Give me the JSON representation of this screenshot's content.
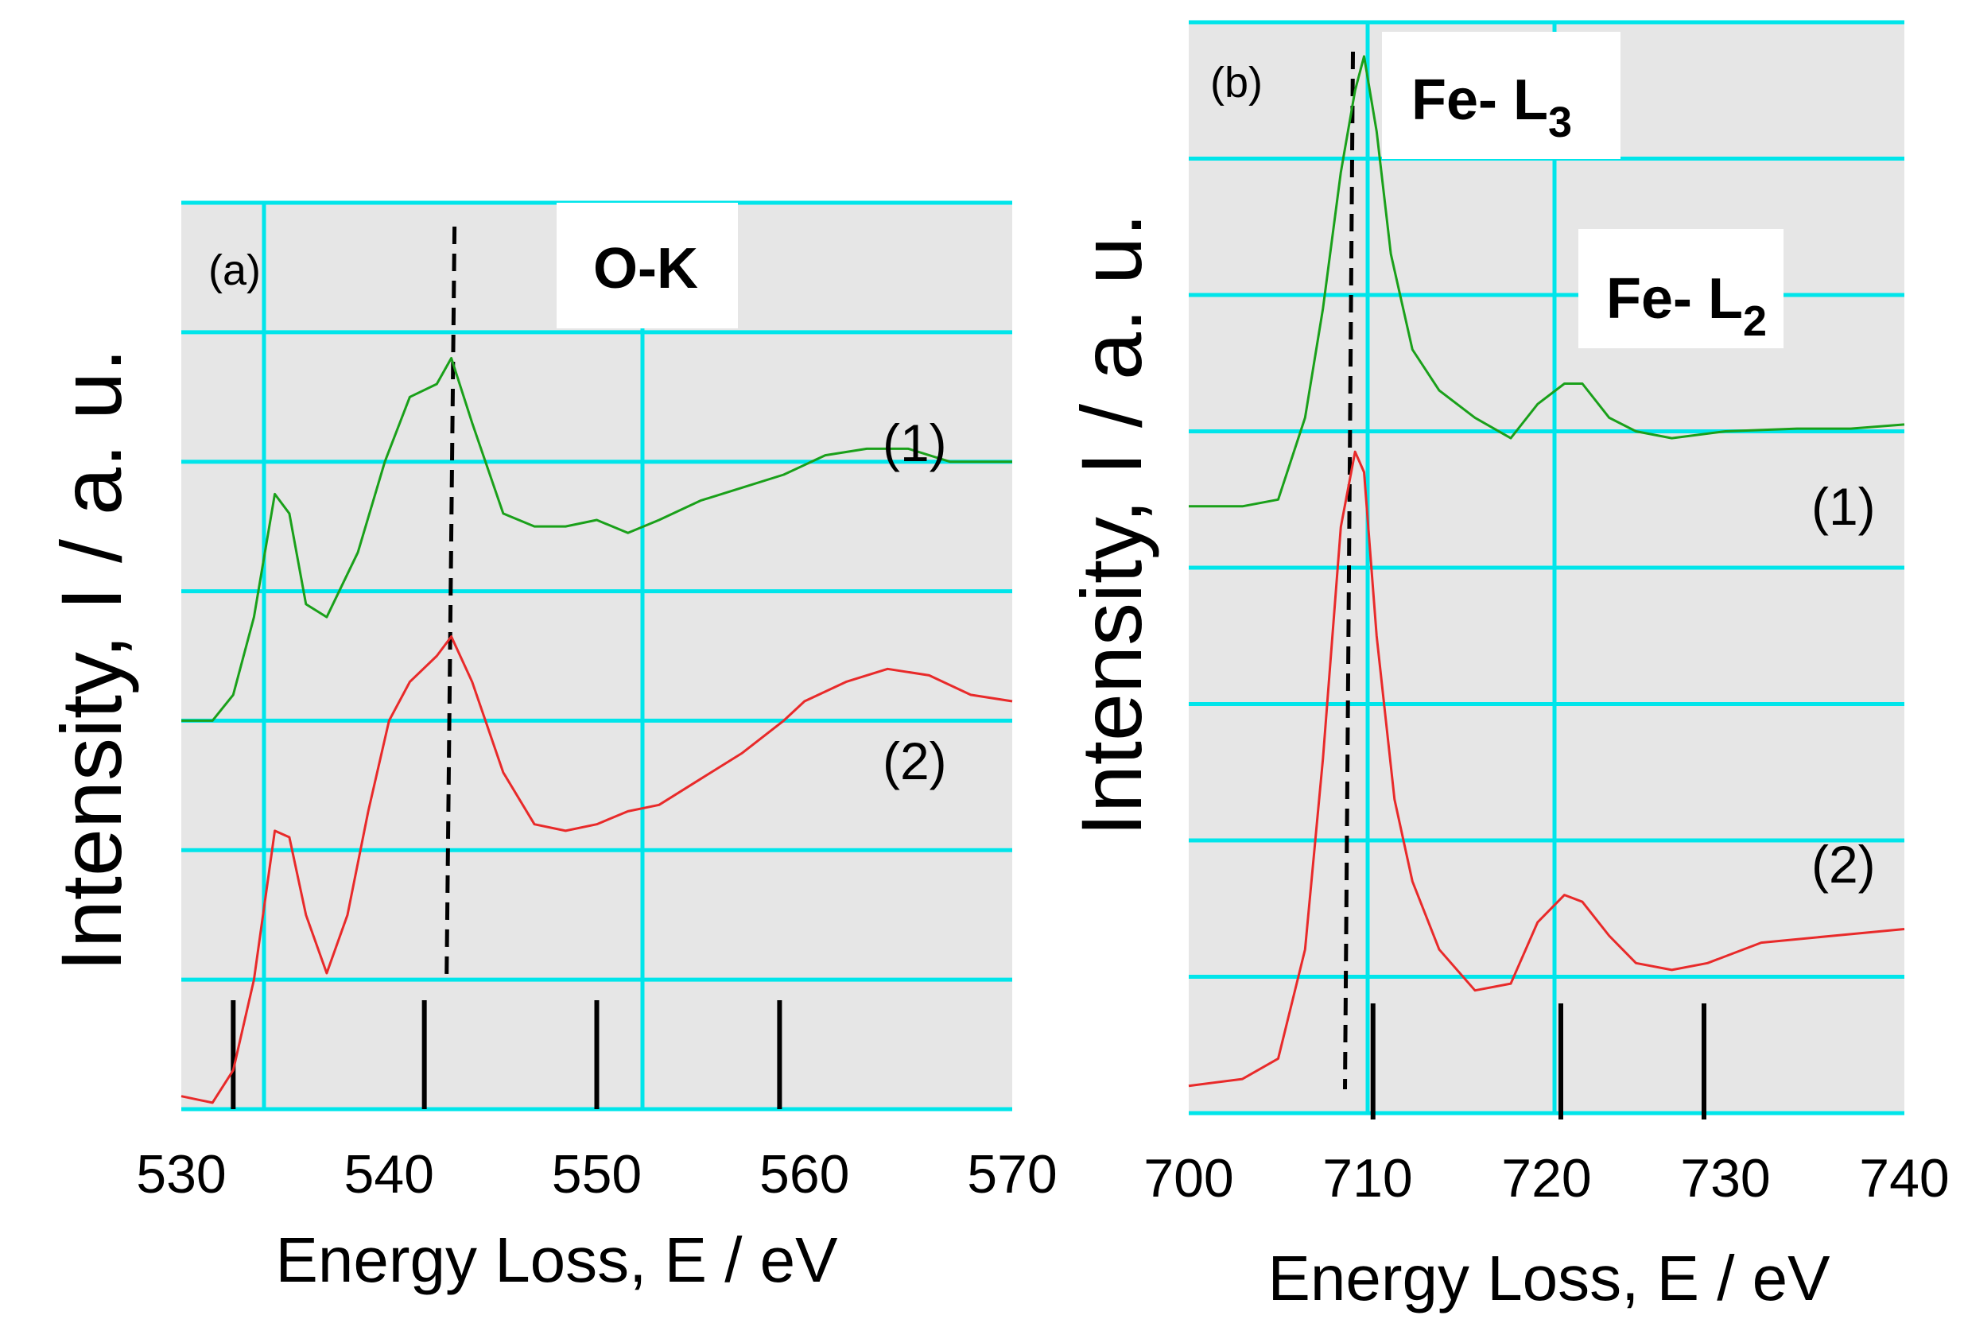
{
  "chart_data": [
    {
      "type": "line",
      "panel": "(a)",
      "edge_label": "O-K",
      "xlabel": "Energy Loss, E / eV",
      "ylabel": "Intensity, I / a. u.",
      "xlim": [
        530,
        570
      ],
      "ylim": [
        0,
        7
      ],
      "x_ticks": [
        "530",
        "540",
        "550",
        "560",
        "570"
      ],
      "grid": true,
      "peak_marker_energy": 543,
      "reference_ticks": [
        532.5,
        541.7,
        550,
        558.8
      ],
      "series": [
        {
          "name": "(1)",
          "color": "#1aa01a",
          "points": [
            [
              530,
              3.0
            ],
            [
              531.5,
              3.0
            ],
            [
              532.5,
              3.2
            ],
            [
              533.5,
              3.8
            ],
            [
              534.5,
              4.75
            ],
            [
              535.2,
              4.6
            ],
            [
              536,
              3.9
            ],
            [
              537,
              3.8
            ],
            [
              538.5,
              4.3
            ],
            [
              539.8,
              5.0
            ],
            [
              541,
              5.5
            ],
            [
              542.3,
              5.6
            ],
            [
              543,
              5.8
            ],
            [
              544,
              5.3
            ],
            [
              545.5,
              4.6
            ],
            [
              547,
              4.5
            ],
            [
              548.5,
              4.5
            ],
            [
              550,
              4.55
            ],
            [
              551.5,
              4.45
            ],
            [
              553,
              4.55
            ],
            [
              555,
              4.7
            ],
            [
              557,
              4.8
            ],
            [
              559,
              4.9
            ],
            [
              561,
              5.05
            ],
            [
              563,
              5.1
            ],
            [
              565,
              5.1
            ],
            [
              567,
              5.0
            ],
            [
              570,
              5.0
            ]
          ]
        },
        {
          "name": "(2)",
          "color": "#e82a2a",
          "points": [
            [
              530,
              0.1
            ],
            [
              531.5,
              0.05
            ],
            [
              532.5,
              0.3
            ],
            [
              533.5,
              1.0
            ],
            [
              534.5,
              2.15
            ],
            [
              535.2,
              2.1
            ],
            [
              536,
              1.5
            ],
            [
              537,
              1.05
            ],
            [
              538,
              1.5
            ],
            [
              539,
              2.3
            ],
            [
              540,
              3.0
            ],
            [
              541,
              3.3
            ],
            [
              542.3,
              3.5
            ],
            [
              543,
              3.65
            ],
            [
              544,
              3.3
            ],
            [
              545.5,
              2.6
            ],
            [
              547,
              2.2
            ],
            [
              548.5,
              2.15
            ],
            [
              550,
              2.2
            ],
            [
              551.5,
              2.3
            ],
            [
              553,
              2.35
            ],
            [
              555,
              2.55
            ],
            [
              557,
              2.75
            ],
            [
              559,
              3.0
            ],
            [
              560,
              3.15
            ],
            [
              562,
              3.3
            ],
            [
              564,
              3.4
            ],
            [
              566,
              3.35
            ],
            [
              568,
              3.2
            ],
            [
              570,
              3.15
            ]
          ]
        }
      ]
    },
    {
      "type": "line",
      "panel": "(b)",
      "edge_labels": [
        "Fe- L",
        "Fe- L"
      ],
      "edge_subscripts": [
        "3",
        "2"
      ],
      "xlabel": "Energy Loss, E / eV",
      "ylabel": "Intensity, I / a. u.",
      "xlim": [
        700,
        740
      ],
      "ylim": [
        0,
        8
      ],
      "x_ticks": [
        "700",
        "710",
        "720",
        "730",
        "740"
      ],
      "grid": true,
      "peak_marker_energy": 709,
      "reference_ticks": [
        710.3,
        720.8,
        728.8
      ],
      "series": [
        {
          "name": "(1)",
          "color": "#1aa01a",
          "points": [
            [
              700,
              4.45
            ],
            [
              703,
              4.45
            ],
            [
              705,
              4.5
            ],
            [
              706.5,
              5.1
            ],
            [
              707.5,
              5.9
            ],
            [
              708.5,
              6.9
            ],
            [
              709.3,
              7.5
            ],
            [
              709.8,
              7.75
            ],
            [
              710.5,
              7.2
            ],
            [
              711.3,
              6.3
            ],
            [
              712.5,
              5.6
            ],
            [
              714,
              5.3
            ],
            [
              716,
              5.1
            ],
            [
              718,
              4.95
            ],
            [
              719.5,
              5.2
            ],
            [
              721,
              5.35
            ],
            [
              722,
              5.35
            ],
            [
              723.5,
              5.1
            ],
            [
              725,
              5.0
            ],
            [
              727,
              4.95
            ],
            [
              730,
              5.0
            ],
            [
              734,
              5.02
            ],
            [
              737,
              5.02
            ],
            [
              740,
              5.05
            ]
          ]
        },
        {
          "name": "(2)",
          "color": "#e82a2a",
          "points": [
            [
              700,
              0.2
            ],
            [
              703,
              0.25
            ],
            [
              705,
              0.4
            ],
            [
              706.5,
              1.2
            ],
            [
              707.5,
              2.6
            ],
            [
              708.5,
              4.3
            ],
            [
              709.3,
              4.85
            ],
            [
              709.8,
              4.7
            ],
            [
              710.5,
              3.5
            ],
            [
              711.5,
              2.3
            ],
            [
              712.5,
              1.7
            ],
            [
              714,
              1.2
            ],
            [
              716,
              0.9
            ],
            [
              718,
              0.95
            ],
            [
              719.5,
              1.4
            ],
            [
              721,
              1.6
            ],
            [
              722,
              1.55
            ],
            [
              723.5,
              1.3
            ],
            [
              725,
              1.1
            ],
            [
              727,
              1.05
            ],
            [
              729,
              1.1
            ],
            [
              732,
              1.25
            ],
            [
              736,
              1.3
            ],
            [
              740,
              1.35
            ]
          ]
        }
      ]
    }
  ],
  "annotations": {
    "a_series1": "(1)",
    "a_series2": "(2)",
    "b_series1": "(1)",
    "b_series2": "(2)"
  }
}
